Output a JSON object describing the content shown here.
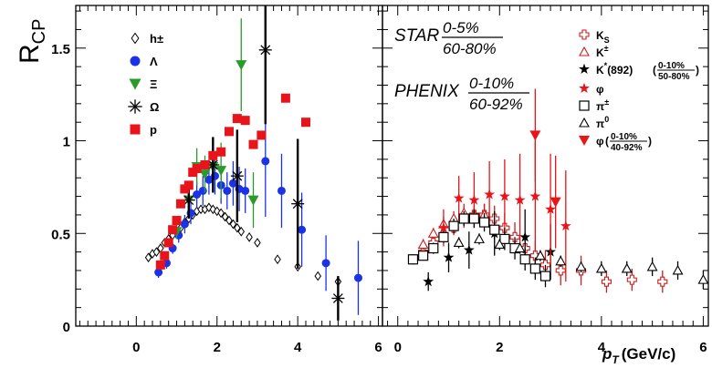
{
  "chart_data": [
    {
      "type": "scatter",
      "panel": "left",
      "ylabel": "R_CP",
      "xlim": [
        -1.5,
        6.1
      ],
      "ylim": [
        0,
        1.73
      ],
      "x_ticks": [
        0,
        2,
        4,
        6
      ],
      "y_ticks": [
        0,
        0.5,
        1,
        1.5
      ],
      "legend": [
        {
          "label": "h±",
          "marker": "diamond-open",
          "color": "#000000"
        },
        {
          "label": "Λ",
          "marker": "circle",
          "color": "#1a33e6"
        },
        {
          "label": "Ξ",
          "marker": "triangle-down",
          "color": "#2a9a2a"
        },
        {
          "label": "Ω",
          "marker": "asterisk",
          "color": "#000000"
        },
        {
          "label": "p",
          "marker": "square",
          "color": "#e8141a"
        }
      ],
      "series": [
        {
          "name": "h±",
          "marker": "diamond-open",
          "color": "#000000",
          "x": [
            0.3,
            0.4,
            0.5,
            0.6,
            0.7,
            0.8,
            0.9,
            1.0,
            1.1,
            1.2,
            1.3,
            1.4,
            1.5,
            1.6,
            1.7,
            1.8,
            1.9,
            2.0,
            2.1,
            2.2,
            2.3,
            2.4,
            2.5,
            2.6,
            2.8,
            3.0,
            3.5,
            4.0,
            4.5,
            5.0
          ],
          "y": [
            0.37,
            0.39,
            0.4,
            0.42,
            0.45,
            0.47,
            0.49,
            0.51,
            0.53,
            0.56,
            0.58,
            0.6,
            0.62,
            0.63,
            0.63,
            0.64,
            0.63,
            0.62,
            0.61,
            0.59,
            0.57,
            0.55,
            0.53,
            0.51,
            0.48,
            0.45,
            0.36,
            0.32,
            0.27,
            0.24
          ],
          "err": [
            0,
            0,
            0,
            0,
            0,
            0,
            0,
            0,
            0,
            0,
            0,
            0,
            0,
            0,
            0,
            0,
            0,
            0,
            0,
            0,
            0,
            0,
            0,
            0,
            0,
            0,
            0,
            0,
            0,
            0
          ]
        },
        {
          "name": "Λ",
          "marker": "circle",
          "color": "#1a33e6",
          "x": [
            0.55,
            0.75,
            0.9,
            1.05,
            1.2,
            1.35,
            1.5,
            1.65,
            1.8,
            1.95,
            2.1,
            2.25,
            2.4,
            2.55,
            2.7,
            3.2,
            3.6,
            4.1,
            4.7,
            5.5
          ],
          "y": [
            0.29,
            0.34,
            0.42,
            0.49,
            0.55,
            0.61,
            0.71,
            0.73,
            0.79,
            0.81,
            0.76,
            0.73,
            0.77,
            0.74,
            0.73,
            0.89,
            0.73,
            0.52,
            0.34,
            0.26
          ],
          "err": [
            0.03,
            0.03,
            0.03,
            0.04,
            0.05,
            0.06,
            0.07,
            0.08,
            0.08,
            0.1,
            0.1,
            0.1,
            0.12,
            0.12,
            0.12,
            0.3,
            0.2,
            0.2,
            0.15,
            0.2
          ]
        },
        {
          "name": "Ξ",
          "marker": "triangle-down",
          "color": "#2a9a2a",
          "x": [
            1.0,
            1.3,
            1.5,
            1.7,
            1.9,
            2.1,
            2.6,
            2.9
          ],
          "y": [
            0.51,
            0.68,
            0.86,
            0.82,
            0.86,
            0.84,
            1.41,
            0.68
          ],
          "err": [
            0.04,
            0.07,
            0.1,
            0.1,
            0.12,
            0.15,
            0.25,
            0.15
          ]
        },
        {
          "name": "Ω",
          "marker": "asterisk",
          "color": "#000000",
          "x": [
            1.3,
            1.9,
            2.5,
            3.2,
            4.0,
            5.0
          ],
          "y": [
            0.68,
            0.87,
            0.81,
            1.49,
            0.66,
            0.15
          ],
          "err": [
            0.1,
            0.15,
            0.25,
            0.4,
            0.35,
            0.12
          ]
        },
        {
          "name": "p",
          "marker": "square",
          "color": "#e8141a",
          "x": [
            0.6,
            0.7,
            0.8,
            0.9,
            1.0,
            1.1,
            1.2,
            1.3,
            1.4,
            1.5,
            1.7,
            1.9,
            2.1,
            2.3,
            2.5,
            2.7,
            2.9,
            3.1,
            3.7,
            4.2
          ],
          "y": [
            0.33,
            0.38,
            0.45,
            0.52,
            0.57,
            0.66,
            0.74,
            0.76,
            0.83,
            0.85,
            0.87,
            0.92,
            0.94,
            1.05,
            1.12,
            1.11,
            0.98,
            1.03,
            1.23,
            1.1
          ],
          "err": [
            0,
            0,
            0,
            0,
            0,
            0,
            0,
            0,
            0,
            0,
            0,
            0,
            0,
            0,
            0,
            0,
            0,
            0,
            0,
            0
          ]
        }
      ]
    },
    {
      "type": "scatter",
      "panel": "right",
      "xlabel": "p_T (GeV/c)",
      "xlim": [
        -0.3,
        6.1
      ],
      "ylim": [
        0,
        1.73
      ],
      "x_ticks": [
        0,
        2,
        4,
        6
      ],
      "annotations": {
        "star": {
          "name": "STAR",
          "num": "0-5%",
          "den": "60-80%"
        },
        "phenix": {
          "name": "PHENIX",
          "num": "0-10%",
          "den": "60-92%"
        }
      },
      "legend": [
        {
          "label": "K",
          "sub": "S",
          "marker": "cross-open",
          "color": "#c81e1e"
        },
        {
          "label": "K",
          "sup": "±",
          "marker": "triangle-up-open",
          "color": "#c81e1e"
        },
        {
          "label": "K",
          "sup": "*",
          "tail": "(892)",
          "frac_num": "0-10%",
          "frac_den": "50-80%",
          "marker": "star",
          "color": "#000000"
        },
        {
          "label": "φ",
          "marker": "star",
          "color": "#e8141a"
        },
        {
          "label": "π",
          "sup": "±",
          "marker": "square-open",
          "color": "#000000"
        },
        {
          "label": "π",
          "sup": "0",
          "marker": "triangle-up-open",
          "color": "#000000"
        },
        {
          "label": "φ",
          "frac_num": "0-10%",
          "frac_den": "40-92%",
          "marker": "triangle-down",
          "color": "#e8141a"
        }
      ],
      "series": [
        {
          "name": "K_S",
          "marker": "cross-open",
          "color": "#c81e1e",
          "x": [
            0.3,
            0.5,
            0.7,
            0.9,
            1.1,
            1.3,
            1.5,
            1.7,
            1.9,
            2.1,
            2.3,
            2.5,
            2.7,
            2.9,
            3.2,
            3.6,
            4.1,
            4.6,
            5.2
          ],
          "y": [
            0.36,
            0.4,
            0.45,
            0.49,
            0.53,
            0.58,
            0.6,
            0.6,
            0.58,
            0.53,
            0.48,
            0.42,
            0.38,
            0.33,
            0.3,
            0.3,
            0.24,
            0.25,
            0.24
          ],
          "err": [
            0.02,
            0.02,
            0.03,
            0.03,
            0.04,
            0.05,
            0.05,
            0.06,
            0.07,
            0.08,
            0.08,
            0.08,
            0.08,
            0.08,
            0.08,
            0.08,
            0.06,
            0.06,
            0.06
          ]
        },
        {
          "name": "K±",
          "marker": "triangle-up-open",
          "color": "#c81e1e",
          "x": [
            0.5,
            0.7,
            0.9,
            1.1,
            1.3,
            1.5,
            1.7
          ],
          "y": [
            0.44,
            0.5,
            0.55,
            0.58,
            0.61,
            0.6,
            0.6
          ],
          "err": [
            0.03,
            0.03,
            0.04,
            0.04,
            0.05,
            0.05,
            0.06
          ]
        },
        {
          "name": "K*(892)",
          "marker": "star",
          "color": "#000000",
          "x": [
            0.6,
            1.0,
            1.4,
            1.9,
            2.5,
            3.0
          ],
          "y": [
            0.24,
            0.37,
            0.41,
            0.5,
            0.48,
            0.4
          ],
          "err": [
            0.05,
            0.08,
            0.1,
            0.12,
            0.15,
            0.15
          ]
        },
        {
          "name": "φ",
          "marker": "star",
          "color": "#e8141a",
          "x": [
            0.9,
            1.2,
            1.5,
            1.8,
            2.1,
            2.4,
            2.7,
            3.0,
            3.3
          ],
          "y": [
            0.53,
            0.69,
            0.68,
            0.71,
            0.7,
            0.68,
            0.7,
            0.63,
            0.54
          ],
          "err": [
            0.1,
            0.12,
            0.15,
            0.18,
            0.2,
            0.25,
            0.3,
            0.3,
            0.3
          ]
        },
        {
          "name": "π±",
          "marker": "square-open",
          "color": "#000000",
          "x": [
            0.3,
            0.5,
            0.7,
            0.9,
            1.1,
            1.3,
            1.5,
            1.7,
            1.9,
            2.1,
            2.3,
            2.5,
            2.7,
            2.9
          ],
          "y": [
            0.36,
            0.38,
            0.42,
            0.48,
            0.54,
            0.58,
            0.58,
            0.56,
            0.52,
            0.47,
            0.42,
            0.36,
            0.31,
            0.27
          ],
          "err": [
            0.02,
            0.02,
            0.03,
            0.03,
            0.04,
            0.04,
            0.05,
            0.05,
            0.05,
            0.06,
            0.06,
            0.06,
            0.06,
            0.06
          ]
        },
        {
          "name": "π0",
          "marker": "triangle-up-open",
          "color": "#000000",
          "x": [
            1.2,
            1.6,
            2.0,
            2.4,
            2.8,
            3.2,
            3.6,
            4.0,
            4.5,
            5.0,
            5.5,
            6.0
          ],
          "y": [
            0.45,
            0.47,
            0.44,
            0.42,
            0.38,
            0.35,
            0.32,
            0.31,
            0.31,
            0.32,
            0.3,
            0.25
          ],
          "err": [
            0.03,
            0.03,
            0.03,
            0.03,
            0.03,
            0.03,
            0.03,
            0.04,
            0.04,
            0.05,
            0.05,
            0.05
          ]
        },
        {
          "name": "φ (0-10%/40-92%)",
          "marker": "triangle-down",
          "color": "#e8141a",
          "x": [
            2.7,
            3.1
          ],
          "y": [
            1.03,
            0.67
          ],
          "err": [
            0.25,
            0.25
          ]
        }
      ]
    }
  ]
}
